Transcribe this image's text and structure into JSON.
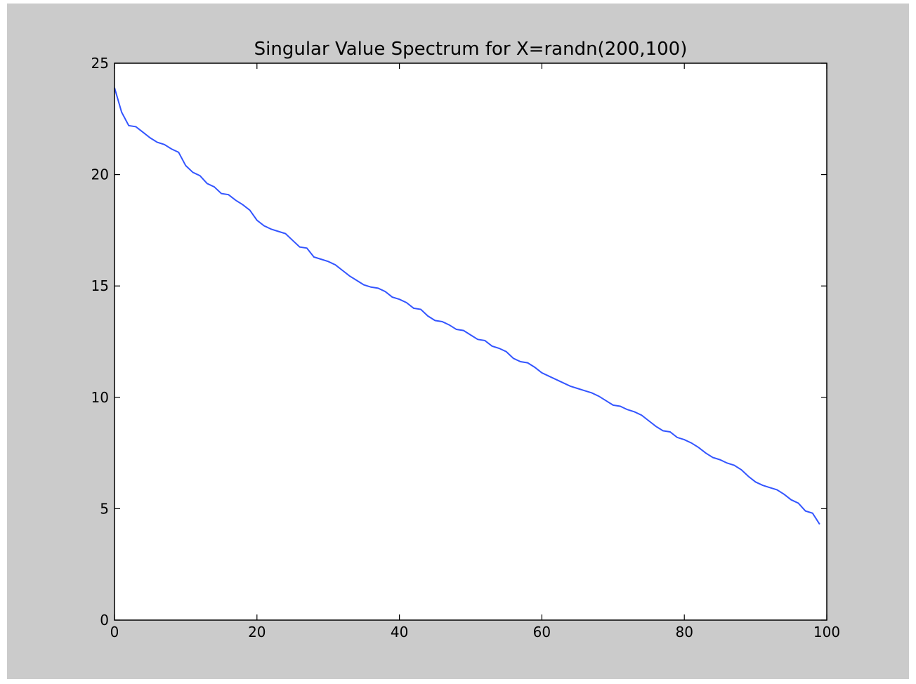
{
  "colors": {
    "figure_background": "#cbcbcb",
    "axes_background": "#ffffff",
    "line": "#3355ff",
    "axis": "#000000"
  },
  "chart_data": {
    "type": "line",
    "title": "Singular Value Spectrum for X=randn(200,100)",
    "xlabel": "",
    "ylabel": "",
    "xlim": [
      0,
      100
    ],
    "ylim": [
      0,
      25
    ],
    "x_ticks": [
      0,
      20,
      40,
      60,
      80,
      100
    ],
    "y_ticks": [
      0,
      5,
      10,
      15,
      20,
      25
    ],
    "x_tick_labels": [
      "0",
      "20",
      "40",
      "60",
      "80",
      "100"
    ],
    "y_tick_labels": [
      "0",
      "5",
      "10",
      "15",
      "20",
      "25"
    ],
    "grid": false,
    "legend": "none",
    "series": [
      {
        "x": [
          0,
          1,
          2,
          3,
          4,
          5,
          6,
          7,
          8,
          9,
          10,
          11,
          12,
          13,
          14,
          15,
          16,
          17,
          18,
          19,
          20,
          21,
          22,
          23,
          24,
          25,
          26,
          27,
          28,
          29,
          30,
          31,
          32,
          33,
          34,
          35,
          36,
          37,
          38,
          39,
          40,
          41,
          42,
          43,
          44,
          45,
          46,
          47,
          48,
          49,
          50,
          51,
          52,
          53,
          54,
          55,
          56,
          57,
          58,
          59,
          60,
          61,
          62,
          63,
          64,
          65,
          66,
          67,
          68,
          69,
          70,
          71,
          72,
          73,
          74,
          75,
          76,
          77,
          78,
          79,
          80,
          81,
          82,
          83,
          84,
          85,
          86,
          87,
          88,
          89,
          90,
          91,
          92,
          93,
          94,
          95,
          96,
          97,
          98,
          99
        ],
        "values": [
          23.9,
          22.8,
          22.2,
          22.15,
          21.9,
          21.65,
          21.45,
          21.35,
          21.15,
          21.0,
          20.4,
          20.1,
          19.95,
          19.6,
          19.45,
          19.15,
          19.1,
          18.85,
          18.65,
          18.4,
          17.95,
          17.7,
          17.55,
          17.45,
          17.35,
          17.05,
          16.75,
          16.7,
          16.3,
          16.2,
          16.1,
          15.95,
          15.7,
          15.45,
          15.25,
          15.05,
          14.95,
          14.9,
          14.75,
          14.5,
          14.4,
          14.25,
          14.0,
          13.95,
          13.65,
          13.45,
          13.4,
          13.25,
          13.05,
          13.0,
          12.8,
          12.6,
          12.55,
          12.3,
          12.2,
          12.05,
          11.75,
          11.6,
          11.55,
          11.35,
          11.1,
          10.95,
          10.8,
          10.65,
          10.5,
          10.4,
          10.3,
          10.2,
          10.05,
          9.85,
          9.65,
          9.6,
          9.45,
          9.35,
          9.2,
          8.95,
          8.7,
          8.5,
          8.45,
          8.2,
          8.1,
          7.95,
          7.75,
          7.5,
          7.3,
          7.2,
          7.05,
          6.95,
          6.75,
          6.45,
          6.2,
          6.05,
          5.95,
          5.85,
          5.65,
          5.4,
          5.25,
          4.9,
          4.8,
          4.3
        ]
      }
    ]
  }
}
